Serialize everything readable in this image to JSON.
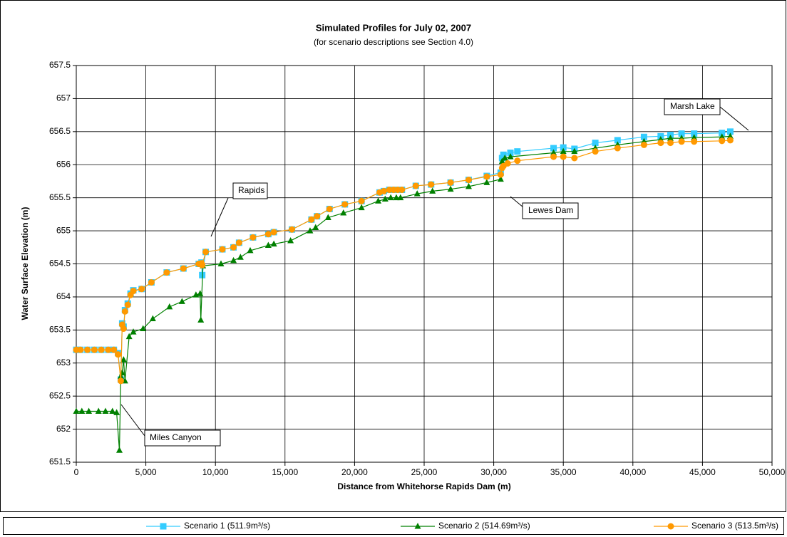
{
  "chart_data": {
    "type": "line",
    "title": "Simulated Profiles for July 02, 2007",
    "subtitle": "(for scenario descriptions see Section 4.0)",
    "x_label": "Distance from Whitehorse Rapids Dam (m)",
    "y_label": "Water Surface Elevation (m)",
    "xlim": [
      0,
      50000
    ],
    "xticks": [
      0,
      {
        "value": 5000,
        "label": "5,000"
      },
      {
        "value": 10000,
        "label": "10,000"
      },
      {
        "value": 15000,
        "label": "15,000"
      },
      {
        "value": 20000,
        "label": "20,000"
      },
      {
        "value": 25000,
        "label": "25,000"
      },
      {
        "value": 30000,
        "label": "30,000"
      },
      {
        "value": 35000,
        "label": "35,000"
      },
      {
        "value": 40000,
        "label": "40,000"
      },
      {
        "value": 45000,
        "label": "45,000"
      },
      {
        "value": 50000,
        "label": "50,000"
      }
    ],
    "ylim": [
      651.5,
      657.5
    ],
    "yticks": [
      651.5,
      652,
      652.5,
      653,
      653.5,
      654,
      654.5,
      655,
      655.5,
      656,
      656.5,
      657,
      657.5
    ],
    "grid": true,
    "legend": "bottom",
    "annotations": [
      "Marsh Lake",
      "Rapids",
      "Lewes Dam",
      "Miles Canyon"
    ],
    "series": [
      {
        "name": "Scenario 1 (511.9m³/s)",
        "color": "#33ccff",
        "marker": "square",
        "x": [
          0,
          300,
          800,
          1300,
          1800,
          2300,
          2700,
          3000,
          3200,
          3300,
          3400,
          3500,
          3700,
          3900,
          4100,
          4700,
          5400,
          6500,
          7700,
          8800,
          9000,
          9050,
          9300,
          10500,
          11300,
          11700,
          12700,
          13800,
          14200,
          15500,
          16900,
          17300,
          18200,
          19300,
          20500,
          21800,
          22100,
          22500,
          22800,
          23100,
          23400,
          24400,
          25500,
          26900,
          28200,
          29500,
          30500,
          30600,
          30700,
          31200,
          31700,
          34300,
          35000,
          35800,
          37300,
          38900,
          40800,
          42000,
          42700,
          43500,
          44400,
          46400,
          47000
        ],
        "values": [
          653.2,
          653.2,
          653.2,
          653.2,
          653.2,
          653.2,
          653.2,
          653.15,
          652.75,
          653.6,
          653.55,
          653.8,
          653.9,
          654.05,
          654.1,
          654.12,
          654.22,
          654.37,
          654.43,
          654.5,
          654.52,
          654.33,
          654.68,
          654.72,
          654.75,
          654.82,
          654.9,
          654.95,
          654.98,
          655.02,
          655.17,
          655.22,
          655.33,
          655.4,
          655.45,
          655.58,
          655.6,
          655.62,
          655.62,
          655.62,
          655.62,
          655.68,
          655.7,
          655.73,
          655.77,
          655.83,
          655.88,
          656.1,
          656.15,
          656.18,
          656.2,
          656.25,
          656.26,
          656.24,
          656.33,
          656.37,
          656.42,
          656.43,
          656.45,
          656.47,
          656.47,
          656.48,
          656.5
        ]
      },
      {
        "name": "Scenario 2 (514.69m³/s)",
        "color": "#008000",
        "marker": "triangle",
        "x": [
          0,
          400,
          900,
          1600,
          2100,
          2600,
          2900,
          3100,
          3200,
          3300,
          3400,
          3500,
          3800,
          4100,
          4800,
          5500,
          6700,
          7600,
          8600,
          8900,
          8950,
          9100,
          10400,
          11300,
          11800,
          12500,
          13800,
          14200,
          15400,
          16800,
          17200,
          18100,
          19200,
          20500,
          21700,
          22200,
          22600,
          23000,
          23300,
          24500,
          25600,
          26900,
          28200,
          29500,
          30500,
          30600,
          30800,
          31200,
          34300,
          35000,
          35800,
          37300,
          38900,
          40800,
          42000,
          42700,
          43500,
          44400,
          46400,
          47000
        ],
        "values": [
          652.27,
          652.27,
          652.27,
          652.27,
          652.27,
          652.27,
          652.25,
          651.68,
          652.8,
          652.85,
          653.05,
          652.73,
          653.4,
          653.47,
          653.52,
          653.67,
          653.85,
          653.93,
          654.03,
          654.05,
          653.65,
          654.47,
          654.5,
          654.55,
          654.6,
          654.7,
          654.78,
          654.8,
          654.85,
          655.0,
          655.05,
          655.2,
          655.27,
          655.35,
          655.45,
          655.48,
          655.5,
          655.5,
          655.5,
          655.56,
          655.6,
          655.63,
          655.67,
          655.73,
          655.78,
          656.05,
          656.1,
          656.12,
          656.18,
          656.2,
          656.2,
          656.25,
          656.3,
          656.35,
          656.38,
          656.4,
          656.4,
          656.41,
          656.42,
          656.43
        ]
      },
      {
        "name": "Scenario 3 (513.5m³/s)",
        "color": "#ff9900",
        "marker": "circle",
        "x": [
          0,
          300,
          800,
          1300,
          1800,
          2300,
          2700,
          3000,
          3200,
          3300,
          3400,
          3500,
          3700,
          3900,
          4100,
          4700,
          5400,
          6500,
          7700,
          8800,
          9000,
          9050,
          9300,
          10500,
          11300,
          11700,
          12700,
          13800,
          14200,
          15500,
          16900,
          17300,
          18200,
          19300,
          20500,
          21800,
          22100,
          22500,
          22800,
          23100,
          23400,
          24400,
          25500,
          26900,
          28200,
          29500,
          30500,
          30600,
          30700,
          31000,
          31700,
          34300,
          35000,
          35800,
          37300,
          38900,
          40800,
          42000,
          42700,
          43500,
          44400,
          46400,
          47000
        ],
        "values": [
          653.2,
          653.2,
          653.2,
          653.2,
          653.2,
          653.2,
          653.2,
          653.13,
          652.73,
          653.58,
          653.52,
          653.78,
          653.88,
          654.03,
          654.09,
          654.12,
          654.22,
          654.37,
          654.43,
          654.5,
          654.51,
          654.48,
          654.68,
          654.72,
          654.75,
          654.82,
          654.9,
          654.95,
          654.98,
          655.02,
          655.17,
          655.22,
          655.33,
          655.4,
          655.45,
          655.58,
          655.6,
          655.62,
          655.62,
          655.62,
          655.62,
          655.68,
          655.7,
          655.73,
          655.77,
          655.82,
          655.85,
          655.95,
          655.98,
          656.02,
          656.06,
          656.12,
          656.12,
          656.1,
          656.2,
          656.25,
          656.3,
          656.33,
          656.33,
          656.35,
          656.35,
          656.36,
          656.37
        ]
      }
    ]
  }
}
